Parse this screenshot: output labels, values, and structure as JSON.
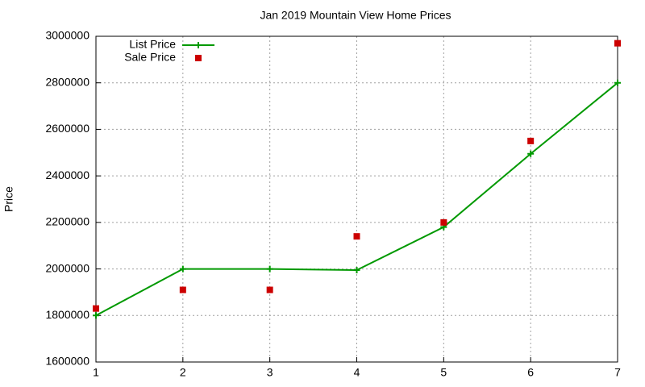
{
  "chart_data": {
    "type": "line",
    "title": "Jan 2019 Mountain View Home Prices",
    "y_label": "Price",
    "x": [
      1,
      2,
      3,
      4,
      5,
      6,
      7
    ],
    "series": [
      {
        "name": "List Price",
        "color": "#009900",
        "line": true,
        "marker": "plus",
        "values": [
          1800000,
          2000000,
          2000000,
          1995000,
          2180000,
          2495000,
          2800000
        ]
      },
      {
        "name": "Sale Price",
        "color": "#cc0000",
        "line": false,
        "marker": "square",
        "values": [
          1830000,
          1910000,
          1910000,
          2140000,
          2200000,
          2550000,
          2970000
        ]
      }
    ],
    "xlim": [
      1,
      7
    ],
    "xticks": [
      1,
      2,
      3,
      4,
      5,
      6,
      7
    ],
    "ylim": [
      1600000,
      3000000
    ],
    "yticks": [
      1600000,
      1800000,
      2000000,
      2200000,
      2400000,
      2600000,
      2800000,
      3000000
    ],
    "grid": true,
    "legend": "top-left"
  }
}
